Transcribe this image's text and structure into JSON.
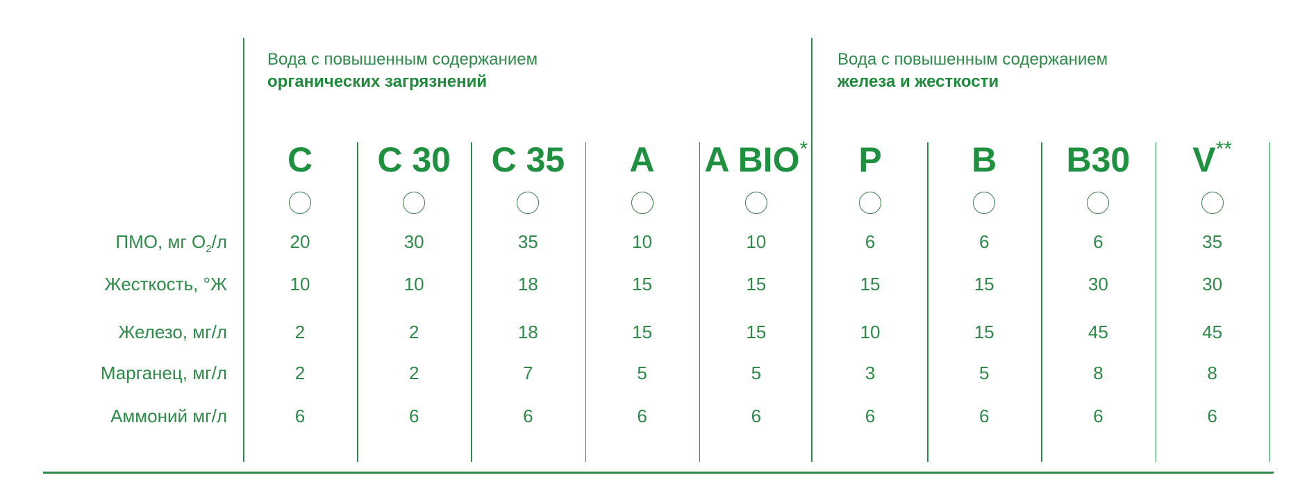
{
  "groups": [
    {
      "line1": "Вода с повышенным содержанием",
      "line2": "органических загрязнений"
    },
    {
      "line1": "Вода с повышенным содержанием",
      "line2": "железа и жесткости"
    }
  ],
  "rows": [
    {
      "label": "ПМО, мг О",
      "sub": "2",
      "suffix": "/л"
    },
    {
      "label": "Жесткость, °Ж"
    },
    {
      "label": "Железо, мг/л"
    },
    {
      "label": "Марганец, мг/л"
    },
    {
      "label": "Аммоний мг/л"
    }
  ],
  "models": [
    {
      "name": "C",
      "mark": "",
      "values": [
        "20",
        "10",
        "2",
        "2",
        "6"
      ]
    },
    {
      "name": "C 30",
      "mark": "",
      "values": [
        "30",
        "10",
        "2",
        "2",
        "6"
      ]
    },
    {
      "name": "C 35",
      "mark": "",
      "values": [
        "35",
        "18",
        "18",
        "7",
        "6"
      ]
    },
    {
      "name": "A",
      "mark": "",
      "values": [
        "10",
        "15",
        "15",
        "5",
        "6"
      ]
    },
    {
      "name": "A BIO",
      "mark": "*",
      "values": [
        "10",
        "15",
        "15",
        "5",
        "6"
      ]
    },
    {
      "name": "P",
      "mark": "",
      "values": [
        "6",
        "15",
        "10",
        "3",
        "6"
      ]
    },
    {
      "name": "B",
      "mark": "",
      "values": [
        "6",
        "15",
        "15",
        "5",
        "6"
      ]
    },
    {
      "name": "B30",
      "mark": "",
      "values": [
        "6",
        "30",
        "45",
        "8",
        "6"
      ]
    },
    {
      "name": "V",
      "mark": "**",
      "values": [
        "35",
        "30",
        "45",
        "8",
        "6"
      ]
    }
  ],
  "colors": {
    "accent": "#1f9040",
    "text": "#2d8a48"
  }
}
